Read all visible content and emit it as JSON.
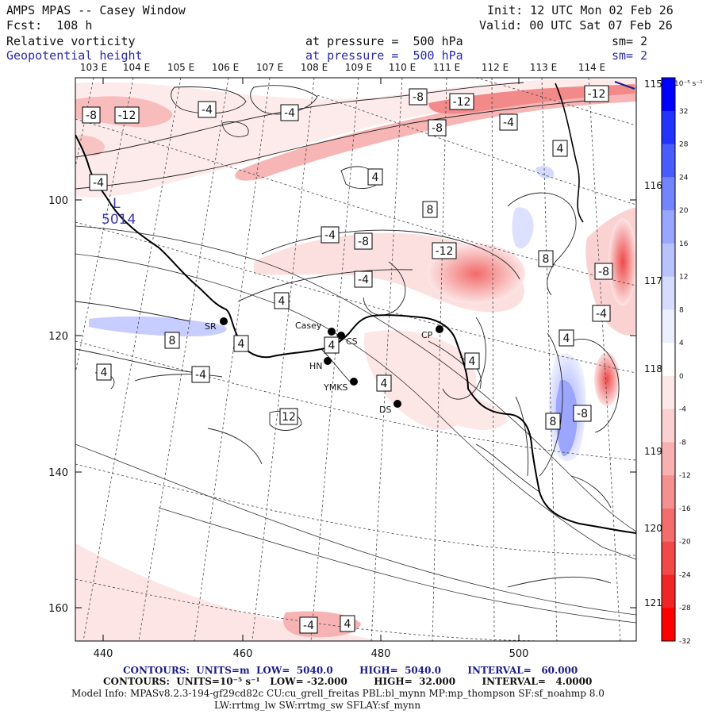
{
  "header": {
    "title": "AMPS MPAS -- Casey Window",
    "init": "Init: 12 UTC Mon 02 Feb 26",
    "fcst": "Fcst:  108 h",
    "valid": "Valid: 00 UTC Sat 07 Feb 26",
    "field1": {
      "name": "Relative vorticity",
      "pressure": "at pressure =  500 hPa",
      "smooth": "sm= 2"
    },
    "field2": {
      "name": "Geopotential height",
      "pressure": "at pressure =  500 hPa",
      "smooth": "sm= 2"
    }
  },
  "map": {
    "top_lon_labels": [
      "103 E",
      "104 E",
      "105 E",
      "106 E",
      "107 E",
      "108 E",
      "109 E",
      "110 E",
      "111 E",
      "112 E",
      "113 E",
      "114 E"
    ],
    "right_lat_labels": [
      "115 E",
      "116 E",
      "117 E",
      "118 E",
      "119 E",
      "120 E",
      "121 E"
    ],
    "x_ticks": [
      "440",
      "460",
      "480",
      "500"
    ],
    "y_ticks": [
      "100",
      "120",
      "140",
      "160"
    ],
    "low_marker": {
      "letter": "L",
      "value": "5014"
    },
    "stations": [
      {
        "code": "SR"
      },
      {
        "code": "Casey"
      },
      {
        "code": "CS"
      },
      {
        "code": "HN"
      },
      {
        "code": "YMKS"
      },
      {
        "code": "DS"
      },
      {
        "code": "CP"
      }
    ],
    "contour_labels": [
      {
        "text": "-8"
      },
      {
        "text": "-12"
      },
      {
        "text": "-4"
      },
      {
        "text": "-4"
      },
      {
        "text": "-8"
      },
      {
        "text": "-12"
      },
      {
        "text": "-12"
      },
      {
        "text": "-8"
      },
      {
        "text": "-4"
      },
      {
        "text": "4"
      },
      {
        "text": "-4"
      },
      {
        "text": "4"
      },
      {
        "text": "8"
      },
      {
        "text": "-4"
      },
      {
        "text": "-8"
      },
      {
        "text": "-12"
      },
      {
        "text": "-4"
      },
      {
        "text": "8"
      },
      {
        "text": "-8"
      },
      {
        "text": "4"
      },
      {
        "text": "-4"
      },
      {
        "text": "8"
      },
      {
        "text": "4"
      },
      {
        "text": "4"
      },
      {
        "text": "4"
      },
      {
        "text": "-4"
      },
      {
        "text": "4"
      },
      {
        "text": "4"
      },
      {
        "text": "4"
      },
      {
        "text": "12"
      },
      {
        "text": "8"
      },
      {
        "text": "-8"
      },
      {
        "text": "-4"
      },
      {
        "text": "4"
      }
    ]
  },
  "colorbar": {
    "unit": "10⁻⁵ s⁻¹",
    "labels": [
      "32",
      "28",
      "24",
      "20",
      "16",
      "12",
      "8",
      "4",
      "0",
      "-4",
      "-8",
      "-12",
      "-16",
      "-20",
      "-24",
      "-28",
      "-32"
    ],
    "colors": [
      "#0000ff",
      "#2233ff",
      "#4a5cff",
      "#7384ff",
      "#98a6ff",
      "#b8c2ff",
      "#d6dcff",
      "#eceffe",
      "#ffffff",
      "#fde8e8",
      "#fbd0d0",
      "#f8b0b0",
      "#f59090",
      "#f36d6d",
      "#f14848",
      "#f02626",
      "#ff0000"
    ]
  },
  "footer": {
    "line1": "CONTOURS:  UNITS=m  LOW=  5040.0        HIGH=  5040.0        INTERVAL=   60.000",
    "line2": "CONTOURS:  UNITS=10⁻⁵ s⁻¹   LOW= -32.000        HIGH=  32.000        INTERVAL=   4.0000",
    "line3": "Model Info: MPASv8.2.3-194-gf29cd82c CU:cu_grell_freitas PBL:bl_mynn MP:mp_thompson SF:sf_noahmp 8.0",
    "line4": "LW:rrtmg_lw SW:rrtmg_sw SFLAY:sf_mynn"
  }
}
